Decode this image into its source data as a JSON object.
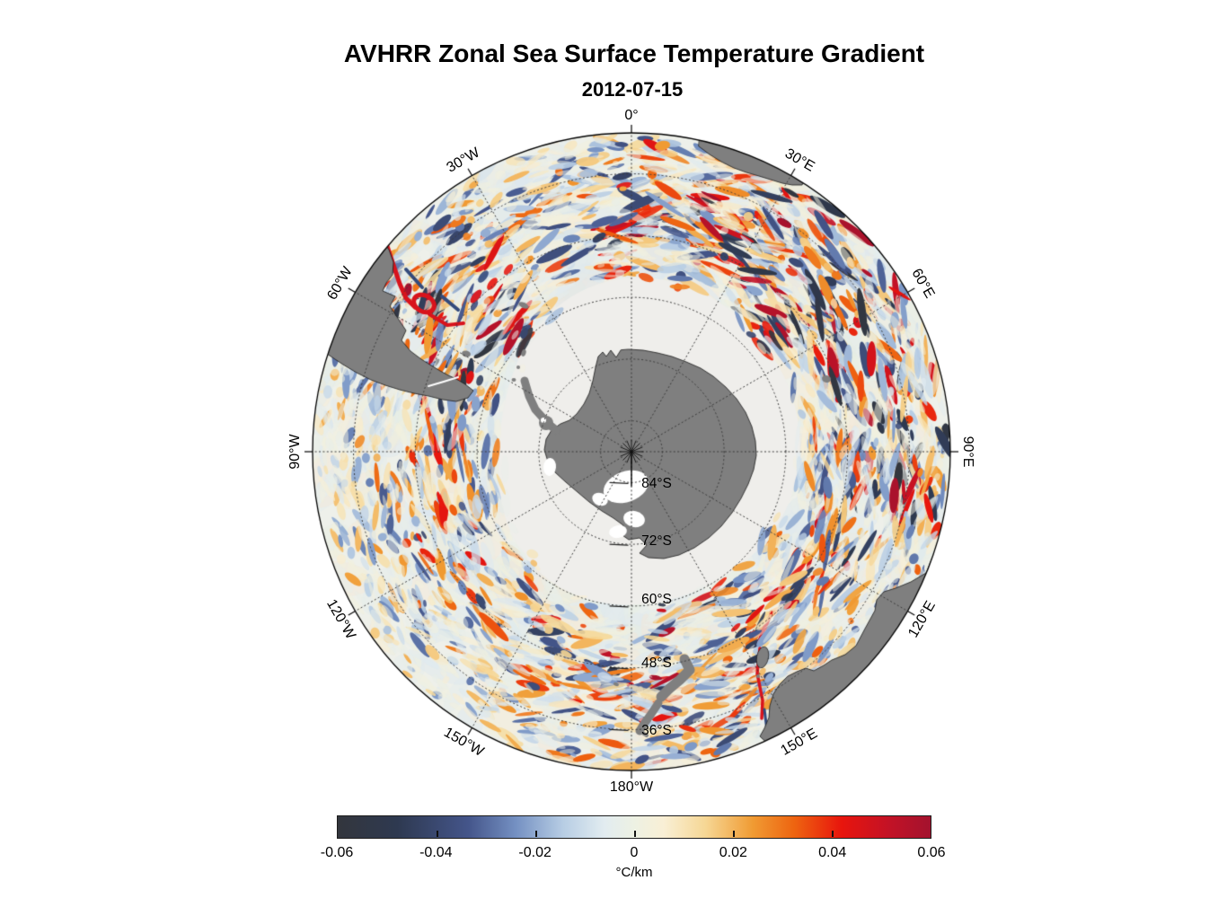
{
  "title": "AVHRR Zonal Sea Surface Temperature Gradient",
  "subtitle": "2012-07-15",
  "map": {
    "lon_labels": [
      {
        "text": "0°",
        "angle_deg": 0
      },
      {
        "text": "30°E",
        "angle_deg": 30
      },
      {
        "text": "60°E",
        "angle_deg": 60
      },
      {
        "text": "90°E",
        "angle_deg": 90
      },
      {
        "text": "120°E",
        "angle_deg": 120
      },
      {
        "text": "150°E",
        "angle_deg": 150
      },
      {
        "text": "180°W",
        "angle_deg": 180
      },
      {
        "text": "150°W",
        "angle_deg": -150
      },
      {
        "text": "120°W",
        "angle_deg": -120
      },
      {
        "text": "90°W",
        "angle_deg": -90
      },
      {
        "text": "60°W",
        "angle_deg": -60
      },
      {
        "text": "30°W",
        "angle_deg": -30
      }
    ],
    "lat_labels": [
      {
        "text": "84°S",
        "lat_deg": -84
      },
      {
        "text": "72°S",
        "lat_deg": -72
      },
      {
        "text": "60°S",
        "lat_deg": -60
      },
      {
        "text": "48°S",
        "lat_deg": -48
      },
      {
        "text": "36°S",
        "lat_deg": -36
      }
    ],
    "colors": {
      "land": "#7f7f7f",
      "ice_sea": "#efeeeb",
      "ocean_base": "#eef0ea",
      "coastline": "#1a1a1a",
      "graticule": "#3c3c3c",
      "outer_ring": "#000000"
    }
  },
  "colorbar": {
    "tick_labels": [
      "-0.06",
      "-0.04",
      "-0.02",
      "0",
      "0.02",
      "0.04",
      "0.06"
    ],
    "unit": "°C/km",
    "gradient_stops": [
      [
        0.0,
        "#33363d"
      ],
      [
        0.1,
        "#2e3950"
      ],
      [
        0.22,
        "#44558a"
      ],
      [
        0.3,
        "#7490c2"
      ],
      [
        0.38,
        "#b7cde4"
      ],
      [
        0.45,
        "#e2ecf0"
      ],
      [
        0.5,
        "#edf1e3"
      ],
      [
        0.55,
        "#f9efd5"
      ],
      [
        0.62,
        "#f6d795"
      ],
      [
        0.7,
        "#f09b33"
      ],
      [
        0.77,
        "#ee6410"
      ],
      [
        0.85,
        "#e8150d"
      ],
      [
        0.93,
        "#c31226"
      ],
      [
        1.0,
        "#a3122e"
      ]
    ]
  },
  "chart_data": {
    "type": "heatmap",
    "title": "AVHRR Zonal Sea Surface Temperature Gradient",
    "date": "2012-07-15",
    "projection": "south polar stereographic, pole-centered, 0° longitude at top",
    "variable": "zonal sea surface temperature gradient",
    "units": "°C/km",
    "value_range": [
      -0.06,
      0.06
    ],
    "colorbar_ticks": [
      -0.06,
      -0.04,
      -0.02,
      0,
      0.02,
      0.04,
      0.06
    ],
    "graticule": {
      "meridians_every_deg": 30,
      "meridian_labels": [
        "0°",
        "30°E",
        "60°E",
        "90°E",
        "120°E",
        "150°E",
        "180°W",
        "150°W",
        "120°W",
        "90°W",
        "60°W",
        "30°W"
      ],
      "parallels_labeled": [
        "84°S",
        "72°S",
        "60°S",
        "48°S",
        "36°S"
      ],
      "outer_boundary_lat_approx": "28°S"
    },
    "land_masses_visible": [
      "Antarctica",
      "South America (Patagonia / Tierra del Fuego)",
      "southern Africa",
      "Australia",
      "Tasmania",
      "New Zealand"
    ],
    "visible_patterns": [
      "pale uniform sea-ice / no-data zone surrounding Antarctica",
      "intense red gradient front hugging the South American east coast near 60°W with red/blue eddy train",
      "dense field of strong red and dark-blue radial eddy streaks between 30°E and 90°E",
      "mottled weak ±0.02 °C/km eddy texture in a circumpolar band",
      "quiet pale sector between 120°W and 150°W",
      "red/blue streak along western Tasmania toward the map edge"
    ]
  }
}
